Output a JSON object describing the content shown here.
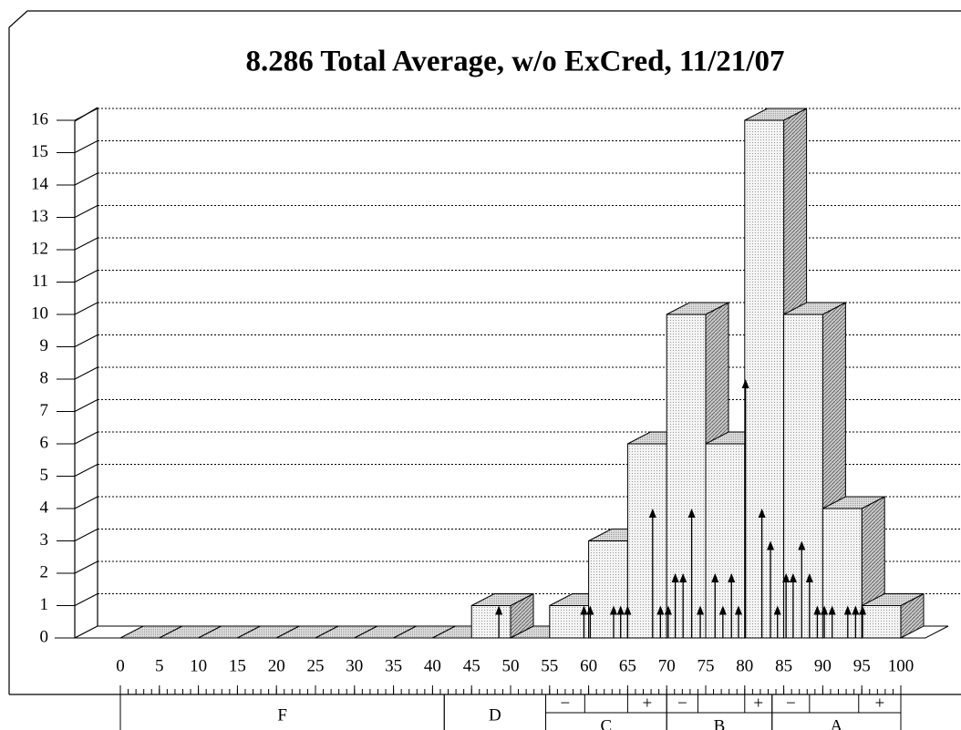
{
  "chart_data": {
    "type": "histogram",
    "title": "8.286 Total Average, w/o ExCred, 11/21/07",
    "bins": [
      0,
      5,
      10,
      15,
      20,
      25,
      30,
      35,
      40,
      45,
      50,
      55,
      60,
      65,
      70,
      75,
      80,
      85,
      90,
      95,
      100
    ],
    "counts": [
      0,
      0,
      0,
      0,
      0,
      0,
      0,
      0,
      0,
      1,
      0,
      1,
      3,
      6,
      10,
      6,
      16,
      10,
      4,
      1
    ],
    "color": "#e8e8e8",
    "side_color": "#a8a8a8",
    "scores": {
      "x": [
        48.5,
        59.4,
        60.2,
        63.2,
        64.1,
        65.0,
        68.2,
        69.2,
        70.2,
        71.1,
        72.1,
        73.2,
        74.3,
        76.2,
        77.2,
        78.3,
        79.2,
        80.1,
        82.2,
        83.3,
        84.2,
        85.3,
        86.2,
        87.3,
        88.3,
        89.3,
        90.2,
        91.2,
        93.2,
        94.2,
        95.1
      ],
      "counts": [
        1,
        1,
        1,
        1,
        1,
        1,
        4,
        1,
        1,
        2,
        2,
        4,
        1,
        2,
        1,
        2,
        1,
        8,
        4,
        3,
        1,
        2,
        2,
        3,
        2,
        1,
        1,
        1,
        1,
        1,
        1
      ]
    },
    "xlim": [
      0,
      100
    ],
    "xticks": [
      0,
      5,
      10,
      15,
      20,
      25,
      30,
      35,
      40,
      45,
      50,
      55,
      60,
      65,
      70,
      75,
      80,
      85,
      90,
      95,
      100
    ],
    "x_minor_step": 1,
    "ylim": [
      0,
      16
    ],
    "yticks": [
      0,
      1,
      2,
      3,
      4,
      5,
      6,
      7,
      8,
      9,
      10,
      11,
      12,
      13,
      14,
      15,
      16
    ],
    "grid": true,
    "grade_bands": [
      {
        "label": "F",
        "range": [
          0,
          41.5
        ]
      },
      {
        "label": "D",
        "range": [
          41.5,
          54.5
        ]
      },
      {
        "label": "C",
        "range": [
          54.5,
          70
        ],
        "minus_end": 59.5,
        "plus_start": 65,
        "minus_label": "−",
        "plus_label": "+"
      },
      {
        "label": "B",
        "range": [
          70,
          83.5
        ],
        "minus_end": 74,
        "plus_start": 80,
        "minus_label": "−",
        "plus_label": "+"
      },
      {
        "label": "A",
        "range": [
          83.5,
          100
        ],
        "minus_end": 88.3,
        "plus_start": 94.6,
        "minus_label": "−",
        "plus_label": "+"
      }
    ]
  }
}
